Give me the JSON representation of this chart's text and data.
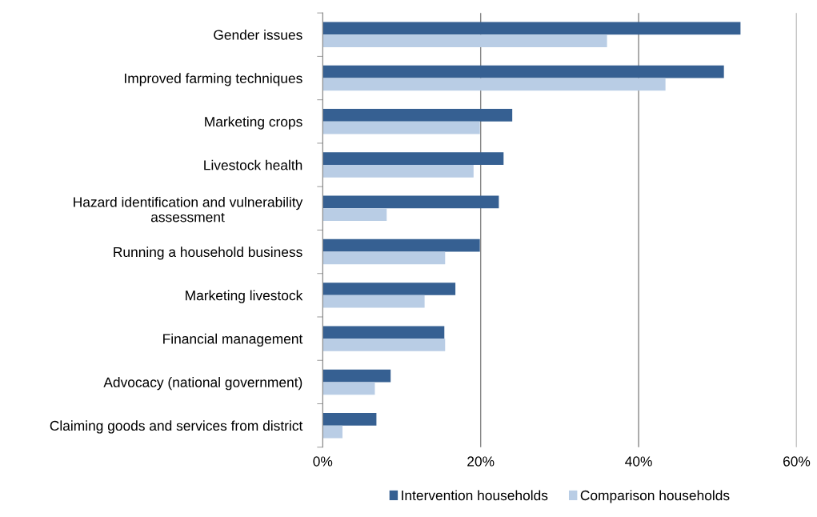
{
  "chart_data": {
    "type": "bar",
    "orientation": "horizontal",
    "categories": [
      "Gender issues",
      "Improved farming techniques",
      "Marketing crops",
      "Livestock health",
      "Hazard identification and vulnerability\nassessment",
      "Running a household business",
      "Marketing livestock",
      "Financial management",
      "Advocacy (national government)",
      "Claiming goods and services from district"
    ],
    "series": [
      {
        "name": "Intervention households",
        "color": "#366092",
        "values": [
          52.9,
          50.8,
          24.0,
          22.9,
          22.3,
          19.9,
          16.8,
          15.4,
          8.6,
          6.8
        ]
      },
      {
        "name": "Comparison households",
        "color": "#b9cde5",
        "values": [
          36.0,
          43.4,
          19.9,
          19.1,
          8.1,
          15.5,
          12.9,
          15.5,
          6.6,
          2.5
        ]
      }
    ],
    "xlim": [
      0,
      60
    ],
    "xticks": [
      {
        "value": 0,
        "label": "0%"
      },
      {
        "value": 20,
        "label": "20%"
      },
      {
        "value": 40,
        "label": "40%"
      },
      {
        "value": 60,
        "label": "60%"
      }
    ],
    "grid": "x",
    "legend": "bottom"
  }
}
